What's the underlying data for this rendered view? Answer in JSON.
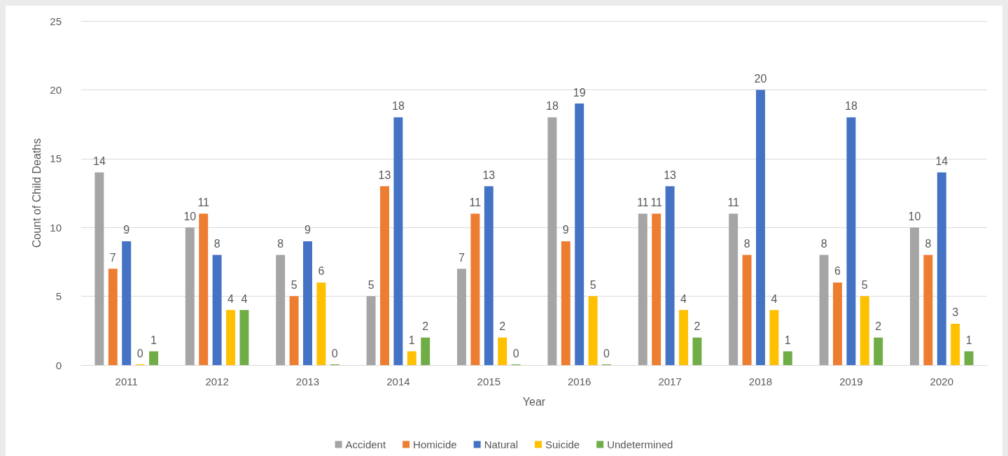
{
  "chart_data": {
    "type": "bar",
    "xlabel": "Year",
    "ylabel": "Count of Child Deaths",
    "categories": [
      "2011",
      "2012",
      "2013",
      "2014",
      "2015",
      "2016",
      "2017",
      "2018",
      "2019",
      "2020"
    ],
    "series": [
      {
        "name": "Accident",
        "color": "#a5a5a5",
        "values": [
          14,
          10,
          8,
          5,
          7,
          18,
          11,
          11,
          8,
          10
        ]
      },
      {
        "name": "Homicide",
        "color": "#ed7d31",
        "values": [
          7,
          11,
          5,
          13,
          11,
          9,
          11,
          8,
          6,
          8
        ]
      },
      {
        "name": "Natural",
        "color": "#4472c4",
        "values": [
          9,
          8,
          9,
          18,
          13,
          19,
          13,
          20,
          18,
          14
        ]
      },
      {
        "name": "Suicide",
        "color": "#ffc000",
        "values": [
          0,
          4,
          6,
          1,
          2,
          5,
          4,
          4,
          5,
          3
        ]
      },
      {
        "name": "Undetermined",
        "color": "#70ad47",
        "values": [
          1,
          4,
          0,
          2,
          0,
          0,
          2,
          1,
          2,
          1
        ]
      }
    ],
    "ylim": [
      0,
      25
    ],
    "yticks": [
      0,
      5,
      10,
      15,
      20,
      25
    ],
    "grid": "y",
    "legend": "bottom",
    "data_labels": true
  }
}
